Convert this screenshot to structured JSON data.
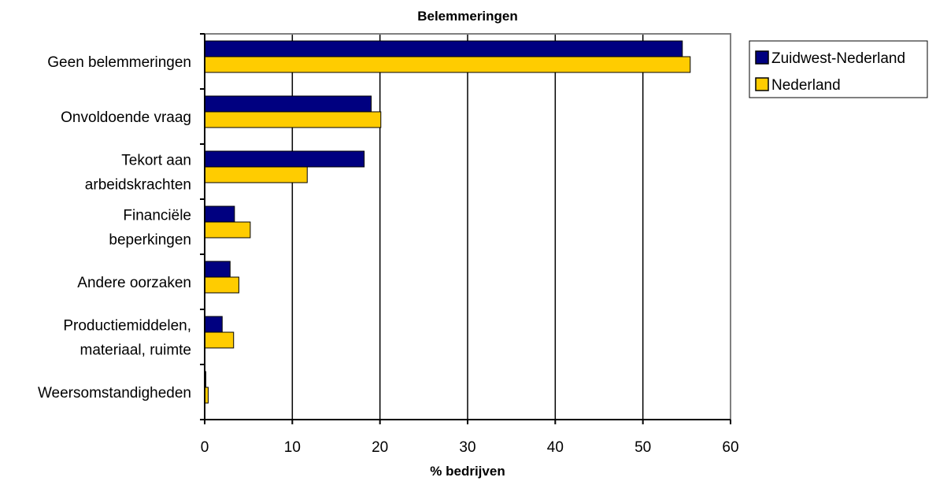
{
  "chart_data": {
    "type": "bar",
    "orientation": "horizontal",
    "title": "Belemmeringen",
    "xlabel": "% bedrijven",
    "ylabel": "",
    "xlim": [
      0,
      60
    ],
    "xticks": [
      0,
      10,
      20,
      30,
      40,
      50,
      60
    ],
    "grid": "vertical",
    "legend_position": "right",
    "categories": [
      [
        "Geen belemmeringen"
      ],
      [
        "Onvoldoende vraag"
      ],
      [
        "Tekort aan",
        "arbeidskrachten"
      ],
      [
        "Financiële",
        "beperkingen"
      ],
      [
        "Andere oorzaken"
      ],
      [
        "Productiemiddelen,",
        "materiaal, ruimte"
      ],
      [
        "Weersomstandigheden"
      ]
    ],
    "series": [
      {
        "name": "Zuidwest-Nederland",
        "color": "#000080",
        "values": [
          54.5,
          19.0,
          18.2,
          3.4,
          2.9,
          2.0,
          0.1
        ]
      },
      {
        "name": "Nederland",
        "color": "#FFCC00",
        "values": [
          55.4,
          20.1,
          11.7,
          5.2,
          3.9,
          3.3,
          0.4
        ]
      }
    ]
  }
}
